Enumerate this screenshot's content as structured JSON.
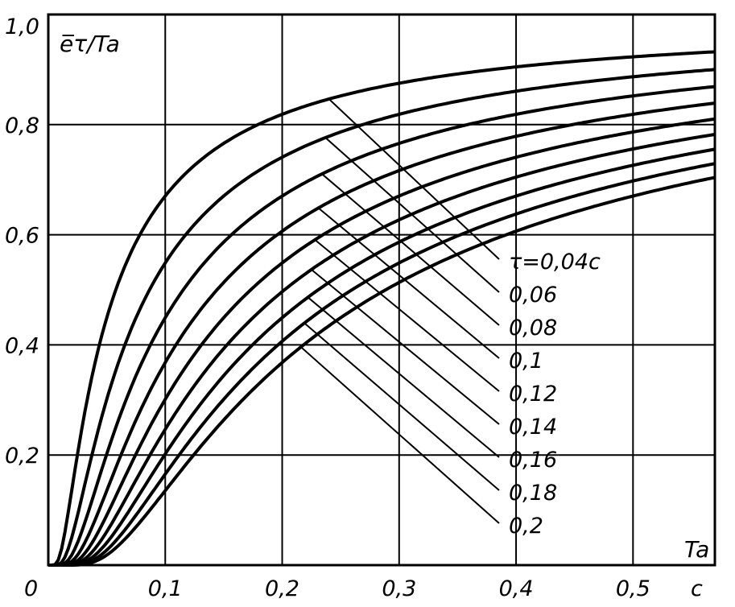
{
  "chart_data": {
    "type": "line",
    "ylabel": "e̅τ/Ta",
    "xlabel": "Ta",
    "x_unit": "c",
    "xlim": [
      0,
      0.57
    ],
    "ylim": [
      0,
      1.0
    ],
    "grid": true,
    "x_ticks": [
      "0,1",
      "0,2",
      "0,3",
      "0,4",
      "0,5"
    ],
    "x_tick_values": [
      0.1,
      0.2,
      0.3,
      0.4,
      0.5
    ],
    "y_ticks": [
      "0,2",
      "0,4",
      "0,6",
      "0,8",
      "1,0"
    ],
    "y_tick_values": [
      0.2,
      0.4,
      0.6,
      0.8,
      1.0
    ],
    "origin_label": "0",
    "x": [
      0.01,
      0.02,
      0.03,
      0.05,
      0.075,
      0.1,
      0.15,
      0.2,
      0.25,
      0.3,
      0.35,
      0.4,
      0.45,
      0.5,
      0.57
    ],
    "series": [
      {
        "name": "τ=0,04c",
        "label": "τ=0,04c",
        "tau": 0.04,
        "values": [
          0.018,
          0.135,
          0.264,
          0.449,
          0.587,
          0.67,
          0.766,
          0.819,
          0.852,
          0.875,
          0.892,
          0.905,
          0.915,
          0.923,
          0.932
        ]
      },
      {
        "name": "0,06",
        "label": "0,06",
        "tau": 0.06,
        "values": [
          0.002,
          0.05,
          0.135,
          0.301,
          0.449,
          0.549,
          0.67,
          0.741,
          0.787,
          0.819,
          0.842,
          0.861,
          0.875,
          0.887,
          0.9
        ]
      },
      {
        "name": "0,08",
        "label": "0,08",
        "tau": 0.08,
        "values": [
          0.0,
          0.018,
          0.069,
          0.202,
          0.344,
          0.449,
          0.587,
          0.67,
          0.726,
          0.766,
          0.796,
          0.819,
          0.837,
          0.852,
          0.869
        ]
      },
      {
        "name": "0,1",
        "label": "0,1",
        "tau": 0.1,
        "values": [
          0.0,
          0.007,
          0.036,
          0.135,
          0.264,
          0.368,
          0.513,
          0.607,
          0.67,
          0.717,
          0.751,
          0.779,
          0.801,
          0.819,
          0.839
        ]
      },
      {
        "name": "0,12",
        "label": "0,12",
        "tau": 0.12,
        "values": [
          0.0,
          0.002,
          0.018,
          0.091,
          0.202,
          0.301,
          0.449,
          0.549,
          0.619,
          0.67,
          0.71,
          0.741,
          0.766,
          0.787,
          0.81
        ]
      },
      {
        "name": "0,14",
        "label": "0,14",
        "tau": 0.14,
        "values": [
          0.0,
          0.001,
          0.009,
          0.061,
          0.155,
          0.247,
          0.393,
          0.497,
          0.571,
          0.627,
          0.67,
          0.705,
          0.733,
          0.756,
          0.782
        ]
      },
      {
        "name": "0,16",
        "label": "0,16",
        "tau": 0.16,
        "values": [
          0.0,
          0.0,
          0.005,
          0.041,
          0.118,
          0.202,
          0.344,
          0.449,
          0.527,
          0.587,
          0.633,
          0.67,
          0.701,
          0.726,
          0.755
        ]
      },
      {
        "name": "0,18",
        "label": "0,18",
        "tau": 0.18,
        "values": [
          0.0,
          0.0,
          0.002,
          0.027,
          0.091,
          0.165,
          0.301,
          0.407,
          0.487,
          0.549,
          0.598,
          0.638,
          0.67,
          0.698,
          0.729
        ]
      },
      {
        "name": "0,2",
        "label": "0,2",
        "tau": 0.2,
        "values": [
          0.0,
          0.0,
          0.001,
          0.018,
          0.069,
          0.135,
          0.264,
          0.368,
          0.449,
          0.513,
          0.565,
          0.607,
          0.641,
          0.67,
          0.704
        ]
      }
    ]
  }
}
